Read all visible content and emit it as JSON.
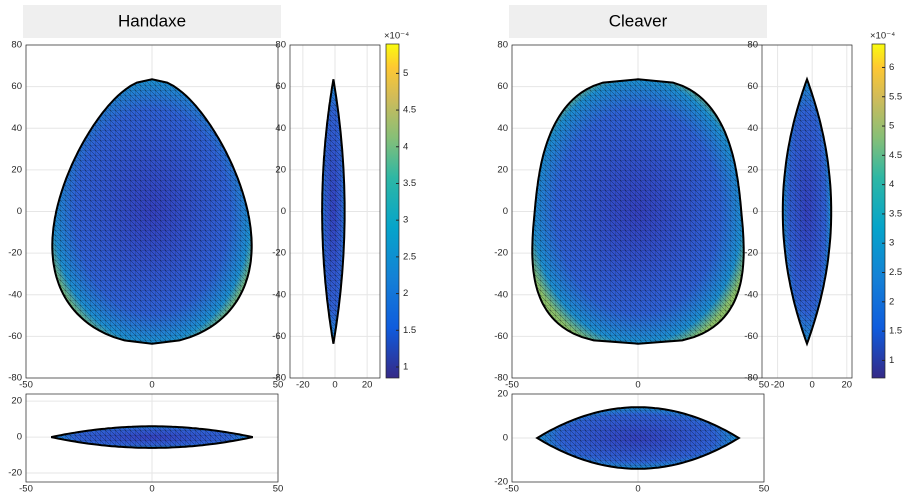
{
  "chart_data": [
    {
      "type": "mesh",
      "title": "Handaxe",
      "front": {
        "xlim": [
          -50,
          50
        ],
        "xticks": [
          -50,
          0,
          50
        ],
        "ylim": [
          -80,
          80
        ],
        "yticks": [
          -80,
          -60,
          -40,
          -20,
          0,
          20,
          40,
          60,
          80
        ]
      },
      "side": {
        "xlim": [
          -28,
          28
        ],
        "xticks": [
          -20,
          0,
          20
        ],
        "ylim": [
          -80,
          80
        ],
        "yticks": [
          -80,
          -60,
          -40,
          -20,
          0,
          20,
          40,
          60,
          80
        ]
      },
      "bottom": {
        "xlim": [
          -50,
          50
        ],
        "xticks": [
          -50,
          0,
          50
        ],
        "ylim": [
          -25,
          24
        ],
        "yticks": [
          -20,
          0,
          20
        ]
      },
      "colorbar": {
        "multiplier": "×10⁻⁴",
        "clim": [
          0.85,
          5.4
        ],
        "ticks": [
          1,
          1.5,
          2,
          2.5,
          3,
          3.5,
          4,
          4.5,
          5
        ]
      },
      "grid": true
    },
    {
      "type": "mesh",
      "title": "Cleaver",
      "front": {
        "xlim": [
          -50,
          50
        ],
        "xticks": [
          -50,
          0,
          50
        ],
        "ylim": [
          -80,
          80
        ],
        "yticks": [
          -80,
          -60,
          -40,
          -20,
          0,
          20,
          40,
          60,
          80
        ]
      },
      "side": {
        "xlim": [
          -29,
          23
        ],
        "xticks": [
          -20,
          0,
          20
        ],
        "ylim": [
          -80,
          80
        ],
        "yticks": [
          -80,
          -60,
          -40,
          -20,
          0,
          20,
          40,
          60,
          80
        ]
      },
      "bottom": {
        "xlim": [
          -50,
          50
        ],
        "xticks": [
          -50,
          0,
          50
        ],
        "ylim": [
          -20,
          20
        ],
        "yticks": [
          -20,
          0,
          20
        ]
      },
      "colorbar": {
        "multiplier": "×10⁻⁴",
        "clim": [
          0.7,
          6.4
        ],
        "ticks": [
          1,
          1.5,
          2,
          2.5,
          3,
          3.5,
          4,
          4.5,
          5,
          5.5,
          6
        ]
      },
      "grid": true
    }
  ]
}
